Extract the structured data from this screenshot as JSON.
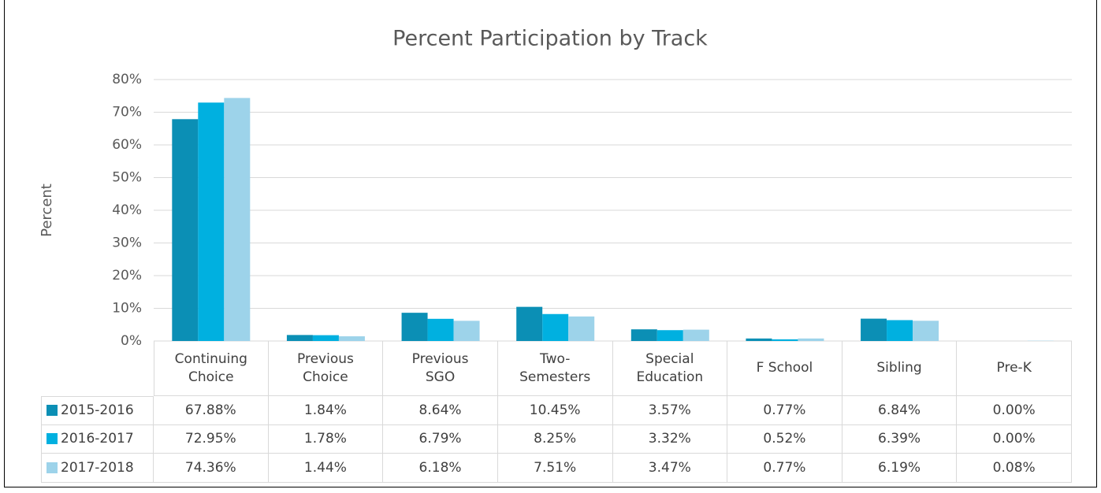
{
  "chart_data": {
    "type": "bar",
    "title": "Percent Participation by Track",
    "y_label": "Percent",
    "categories": [
      "Continuing Choice",
      "Previous Choice",
      "Previous SGO",
      "Two-Semesters",
      "Special Education",
      "F School",
      "Sibling",
      "Pre-K"
    ],
    "series": [
      {
        "name": "2015-2016",
        "color": "#0b8fb5",
        "values": [
          67.88,
          1.84,
          8.64,
          10.45,
          3.57,
          0.77,
          6.84,
          0.0
        ],
        "value_labels": [
          "67.88%",
          "1.84%",
          "8.64%",
          "10.45%",
          "3.57%",
          "0.77%",
          "6.84%",
          "0.00%"
        ]
      },
      {
        "name": "2016-2017",
        "color": "#00b0e0",
        "values": [
          72.95,
          1.78,
          6.79,
          8.25,
          3.32,
          0.52,
          6.39,
          0.0
        ],
        "value_labels": [
          "72.95%",
          "1.78%",
          "6.79%",
          "8.25%",
          "3.32%",
          "0.52%",
          "6.39%",
          "0.00%"
        ]
      },
      {
        "name": "2017-2018",
        "color": "#9dd3ea",
        "values": [
          74.36,
          1.44,
          6.18,
          7.51,
          3.47,
          0.77,
          6.19,
          0.08
        ],
        "value_labels": [
          "74.36%",
          "1.44%",
          "6.18%",
          "7.51%",
          "3.47%",
          "0.77%",
          "6.19%",
          "0.08%"
        ]
      }
    ],
    "ylim": [
      0,
      80
    ],
    "yticks": [
      {
        "value": 0,
        "label": "0%"
      },
      {
        "value": 10,
        "label": "10%"
      },
      {
        "value": 20,
        "label": "20%"
      },
      {
        "value": 30,
        "label": "30%"
      },
      {
        "value": 40,
        "label": "40%"
      },
      {
        "value": 50,
        "label": "50%"
      },
      {
        "value": 60,
        "label": "60%"
      },
      {
        "value": 70,
        "label": "70%"
      },
      {
        "value": 80,
        "label": "80%"
      }
    ],
    "grid": true
  }
}
